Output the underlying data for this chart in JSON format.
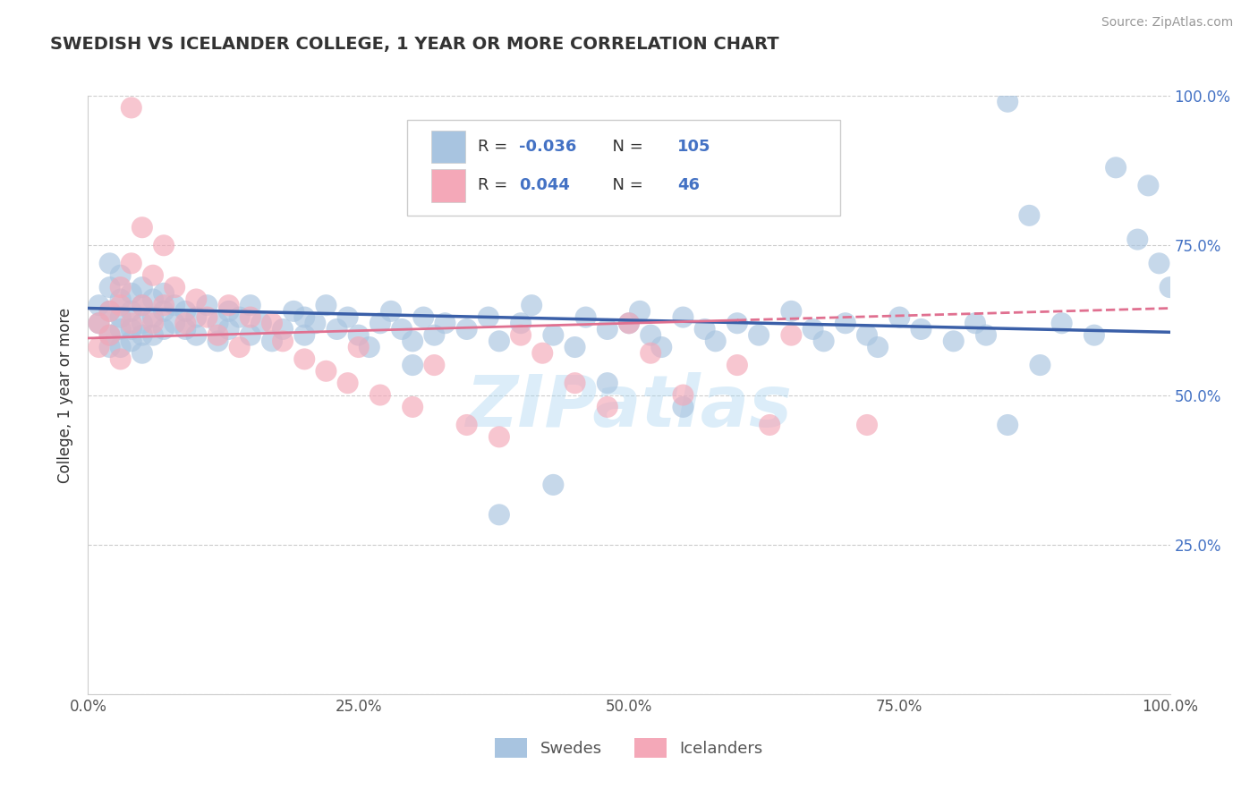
{
  "title": "SWEDISH VS ICELANDER COLLEGE, 1 YEAR OR MORE CORRELATION CHART",
  "source": "Source: ZipAtlas.com",
  "ylabel": "College, 1 year or more",
  "r_swedes": -0.036,
  "n_swedes": 105,
  "r_icelanders": 0.044,
  "n_icelanders": 46,
  "swedes_color": "#a8c4e0",
  "icelanders_color": "#f4a8b8",
  "trend_swede_color": "#3a5fa8",
  "trend_icelander_color": "#e07090",
  "background_color": "#ffffff",
  "grid_color": "#cccccc",
  "title_color": "#333333",
  "source_color": "#999999",
  "axis_color": "#555555",
  "right_tick_color": "#4472c4",
  "swedes_x": [
    0.01,
    0.01,
    0.02,
    0.02,
    0.02,
    0.02,
    0.02,
    0.03,
    0.03,
    0.03,
    0.03,
    0.03,
    0.04,
    0.04,
    0.04,
    0.04,
    0.05,
    0.05,
    0.05,
    0.05,
    0.05,
    0.06,
    0.06,
    0.06,
    0.07,
    0.07,
    0.07,
    0.08,
    0.08,
    0.09,
    0.09,
    0.1,
    0.1,
    0.11,
    0.12,
    0.12,
    0.13,
    0.13,
    0.14,
    0.15,
    0.15,
    0.16,
    0.17,
    0.18,
    0.19,
    0.2,
    0.2,
    0.21,
    0.22,
    0.23,
    0.24,
    0.25,
    0.26,
    0.27,
    0.28,
    0.29,
    0.3,
    0.31,
    0.32,
    0.33,
    0.35,
    0.37,
    0.38,
    0.4,
    0.41,
    0.43,
    0.45,
    0.46,
    0.48,
    0.5,
    0.51,
    0.52,
    0.53,
    0.55,
    0.57,
    0.58,
    0.6,
    0.62,
    0.65,
    0.67,
    0.68,
    0.7,
    0.72,
    0.73,
    0.75,
    0.77,
    0.8,
    0.82,
    0.83,
    0.85,
    0.87,
    0.88,
    0.9,
    0.93,
    0.95,
    0.97,
    0.98,
    0.99,
    1.0,
    0.85,
    0.55,
    0.48,
    0.43,
    0.38,
    0.3
  ],
  "swedes_y": [
    0.65,
    0.62,
    0.68,
    0.64,
    0.6,
    0.58,
    0.72,
    0.66,
    0.63,
    0.7,
    0.61,
    0.58,
    0.67,
    0.64,
    0.61,
    0.59,
    0.68,
    0.65,
    0.62,
    0.6,
    0.57,
    0.66,
    0.63,
    0.6,
    0.67,
    0.64,
    0.61,
    0.65,
    0.62,
    0.64,
    0.61,
    0.63,
    0.6,
    0.65,
    0.62,
    0.59,
    0.64,
    0.61,
    0.63,
    0.6,
    0.65,
    0.62,
    0.59,
    0.61,
    0.64,
    0.63,
    0.6,
    0.62,
    0.65,
    0.61,
    0.63,
    0.6,
    0.58,
    0.62,
    0.64,
    0.61,
    0.59,
    0.63,
    0.6,
    0.62,
    0.61,
    0.63,
    0.59,
    0.62,
    0.65,
    0.6,
    0.58,
    0.63,
    0.61,
    0.62,
    0.64,
    0.6,
    0.58,
    0.63,
    0.61,
    0.59,
    0.62,
    0.6,
    0.64,
    0.61,
    0.59,
    0.62,
    0.6,
    0.58,
    0.63,
    0.61,
    0.59,
    0.62,
    0.6,
    0.99,
    0.8,
    0.55,
    0.62,
    0.6,
    0.88,
    0.76,
    0.85,
    0.72,
    0.68,
    0.45,
    0.48,
    0.52,
    0.35,
    0.3,
    0.55
  ],
  "icelanders_x": [
    0.01,
    0.01,
    0.02,
    0.02,
    0.03,
    0.03,
    0.03,
    0.04,
    0.04,
    0.05,
    0.05,
    0.06,
    0.06,
    0.07,
    0.07,
    0.08,
    0.09,
    0.1,
    0.11,
    0.12,
    0.13,
    0.14,
    0.15,
    0.17,
    0.18,
    0.2,
    0.22,
    0.24,
    0.25,
    0.27,
    0.3,
    0.32,
    0.35,
    0.38,
    0.4,
    0.42,
    0.45,
    0.48,
    0.5,
    0.52,
    0.55,
    0.6,
    0.63,
    0.65,
    0.72,
    0.04
  ],
  "icelanders_y": [
    0.62,
    0.58,
    0.64,
    0.6,
    0.68,
    0.65,
    0.56,
    0.72,
    0.62,
    0.78,
    0.65,
    0.7,
    0.62,
    0.75,
    0.65,
    0.68,
    0.62,
    0.66,
    0.63,
    0.6,
    0.65,
    0.58,
    0.63,
    0.62,
    0.59,
    0.56,
    0.54,
    0.52,
    0.58,
    0.5,
    0.48,
    0.55,
    0.45,
    0.43,
    0.6,
    0.57,
    0.52,
    0.48,
    0.62,
    0.57,
    0.5,
    0.55,
    0.45,
    0.6,
    0.45,
    0.98
  ],
  "x_ticks": [
    0.0,
    0.25,
    0.5,
    0.75,
    1.0
  ],
  "x_labels": [
    "0.0%",
    "25.0%",
    "50.0%",
    "75.0%",
    "100.0%"
  ],
  "y_ticks": [
    0.0,
    0.25,
    0.5,
    0.75,
    1.0
  ],
  "y_labels_right": [
    "",
    "25.0%",
    "50.0%",
    "75.0%",
    "100.0%"
  ]
}
